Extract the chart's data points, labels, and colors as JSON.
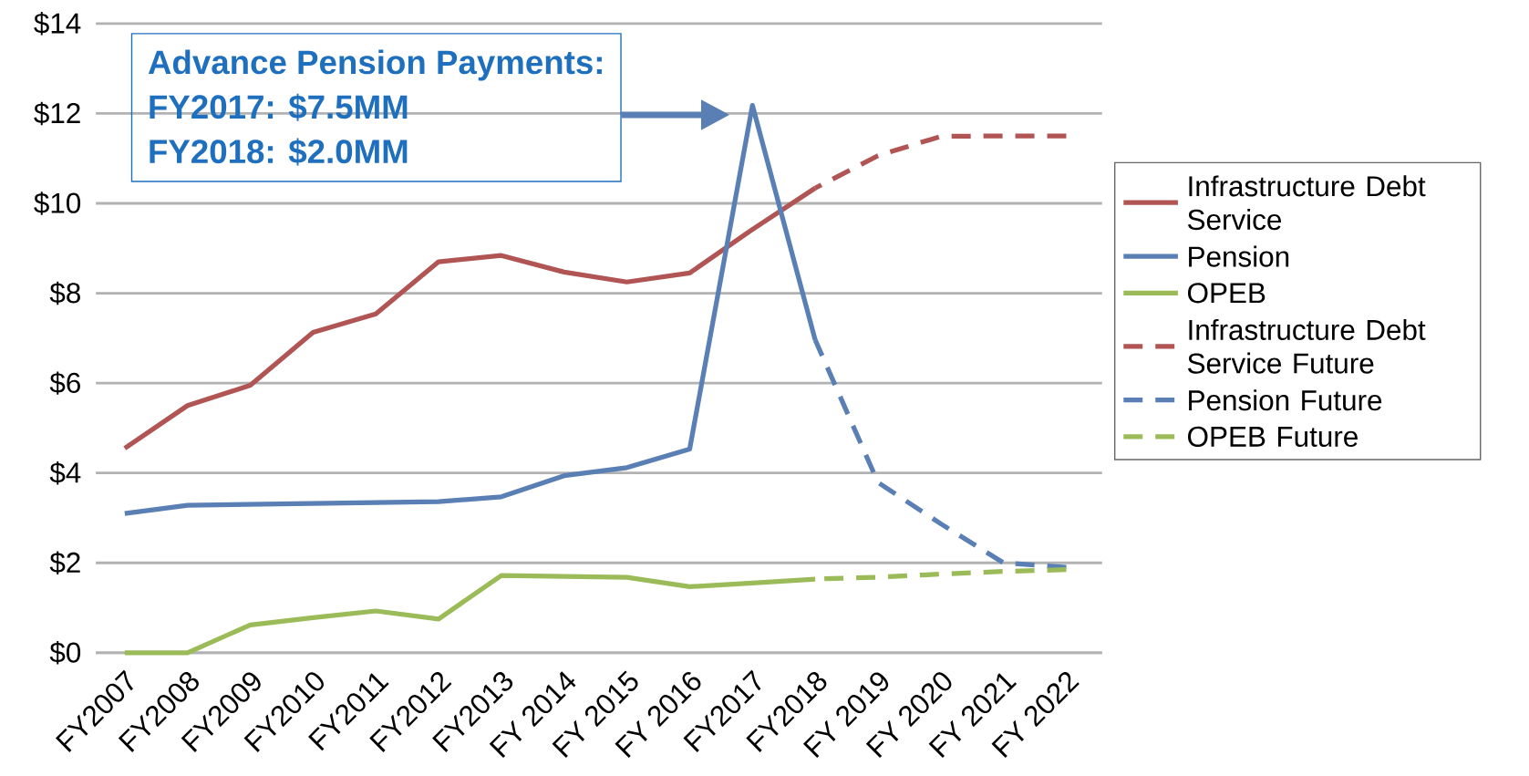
{
  "chart_data": {
    "type": "line",
    "categories": [
      "FY2007",
      "FY2008",
      "FY2009",
      "FY2010",
      "FY2011",
      "FY2012",
      "FY2013",
      "FY 2014",
      "FY 2015",
      "FY 2016",
      "FY2017",
      "FY2018",
      "FY 2019",
      "FY 2020",
      "FY 2021",
      "FY 2022"
    ],
    "series": [
      {
        "name": "Infrastructure Debt Service",
        "color": "#b05454",
        "line_style": "solid",
        "values": [
          4.55,
          5.5,
          5.95,
          7.13,
          7.54,
          8.7,
          8.84,
          8.47,
          8.25,
          8.45,
          9.42,
          10.34,
          null,
          null,
          null,
          null
        ]
      },
      {
        "name": "Pension",
        "color": "#5a7fb5",
        "line_style": "solid",
        "values": [
          3.1,
          3.28,
          3.3,
          3.32,
          3.34,
          3.36,
          3.47,
          3.94,
          4.12,
          4.53,
          12.18,
          6.96,
          null,
          null,
          null,
          null
        ]
      },
      {
        "name": "OPEB",
        "color": "#9bbb59",
        "line_style": "solid",
        "values": [
          0,
          0,
          0.62,
          0.78,
          0.93,
          0.75,
          1.72,
          1.7,
          1.68,
          1.47,
          1.55,
          1.64,
          null,
          null,
          null,
          null
        ]
      },
      {
        "name": "Infrastructure Debt Service Future",
        "color": "#b05454",
        "line_style": "dashed",
        "values": [
          null,
          null,
          null,
          null,
          null,
          null,
          null,
          null,
          null,
          null,
          null,
          10.34,
          11.06,
          11.49,
          11.5,
          11.5
        ]
      },
      {
        "name": "Pension Future",
        "color": "#5a7fb5",
        "line_style": "dashed",
        "values": [
          null,
          null,
          null,
          null,
          null,
          null,
          null,
          null,
          null,
          null,
          null,
          6.96,
          3.79,
          2.87,
          2.0,
          1.9
        ]
      },
      {
        "name": "OPEB Future",
        "color": "#9bbb59",
        "line_style": "dashed",
        "values": [
          null,
          null,
          null,
          null,
          null,
          null,
          null,
          null,
          null,
          null,
          null,
          1.64,
          1.68,
          1.75,
          1.81,
          1.85
        ]
      }
    ],
    "ylim": [
      0,
      14
    ],
    "yticks": [
      {
        "value": 0,
        "label": "$0"
      },
      {
        "value": 2,
        "label": "$2"
      },
      {
        "value": 4,
        "label": "$4"
      },
      {
        "value": 6,
        "label": "$6"
      },
      {
        "value": 8,
        "label": "$8"
      },
      {
        "value": 10,
        "label": "$10"
      },
      {
        "value": 12,
        "label": "$12"
      },
      {
        "value": 14,
        "label": "$14"
      }
    ],
    "grid": "y",
    "legend": "right",
    "marker": "none",
    "annotations": [
      "Advance Pension Payments:",
      "FY2017: $7.5MM",
      "FY2018: $2.0MM"
    ]
  }
}
